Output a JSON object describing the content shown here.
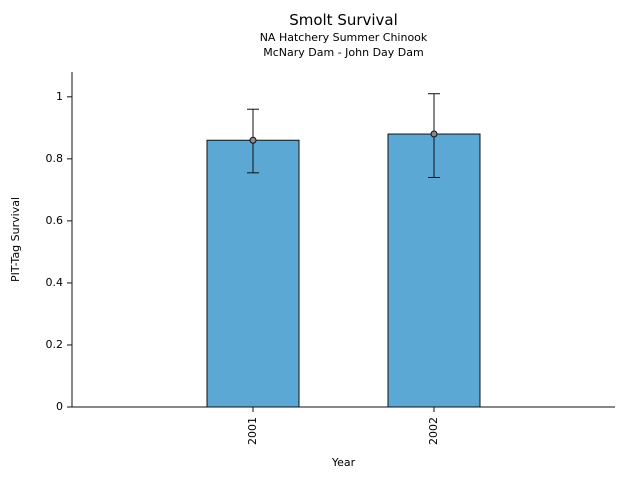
{
  "chart_data": {
    "type": "bar",
    "title": "Smolt Survival",
    "subtitle1": "NA Hatchery Summer Chinook",
    "subtitle2": "McNary Dam - John Day Dam",
    "xlabel": "Year",
    "ylabel": "PIT-Tag Survival",
    "categories": [
      "2001",
      "2002"
    ],
    "values": [
      0.86,
      0.88
    ],
    "error_low": [
      0.755,
      0.74
    ],
    "error_high": [
      0.96,
      1.01
    ],
    "yticks": [
      0,
      0.2,
      0.4,
      0.6,
      0.8,
      1
    ],
    "ylim": [
      0,
      1.08
    ],
    "bar_color": "#5BA8D5",
    "bar_edge_color": "#111111",
    "axis_color": "#111111",
    "marker_fill": "#8a8a8a",
    "legend": "off",
    "grid": "off"
  }
}
